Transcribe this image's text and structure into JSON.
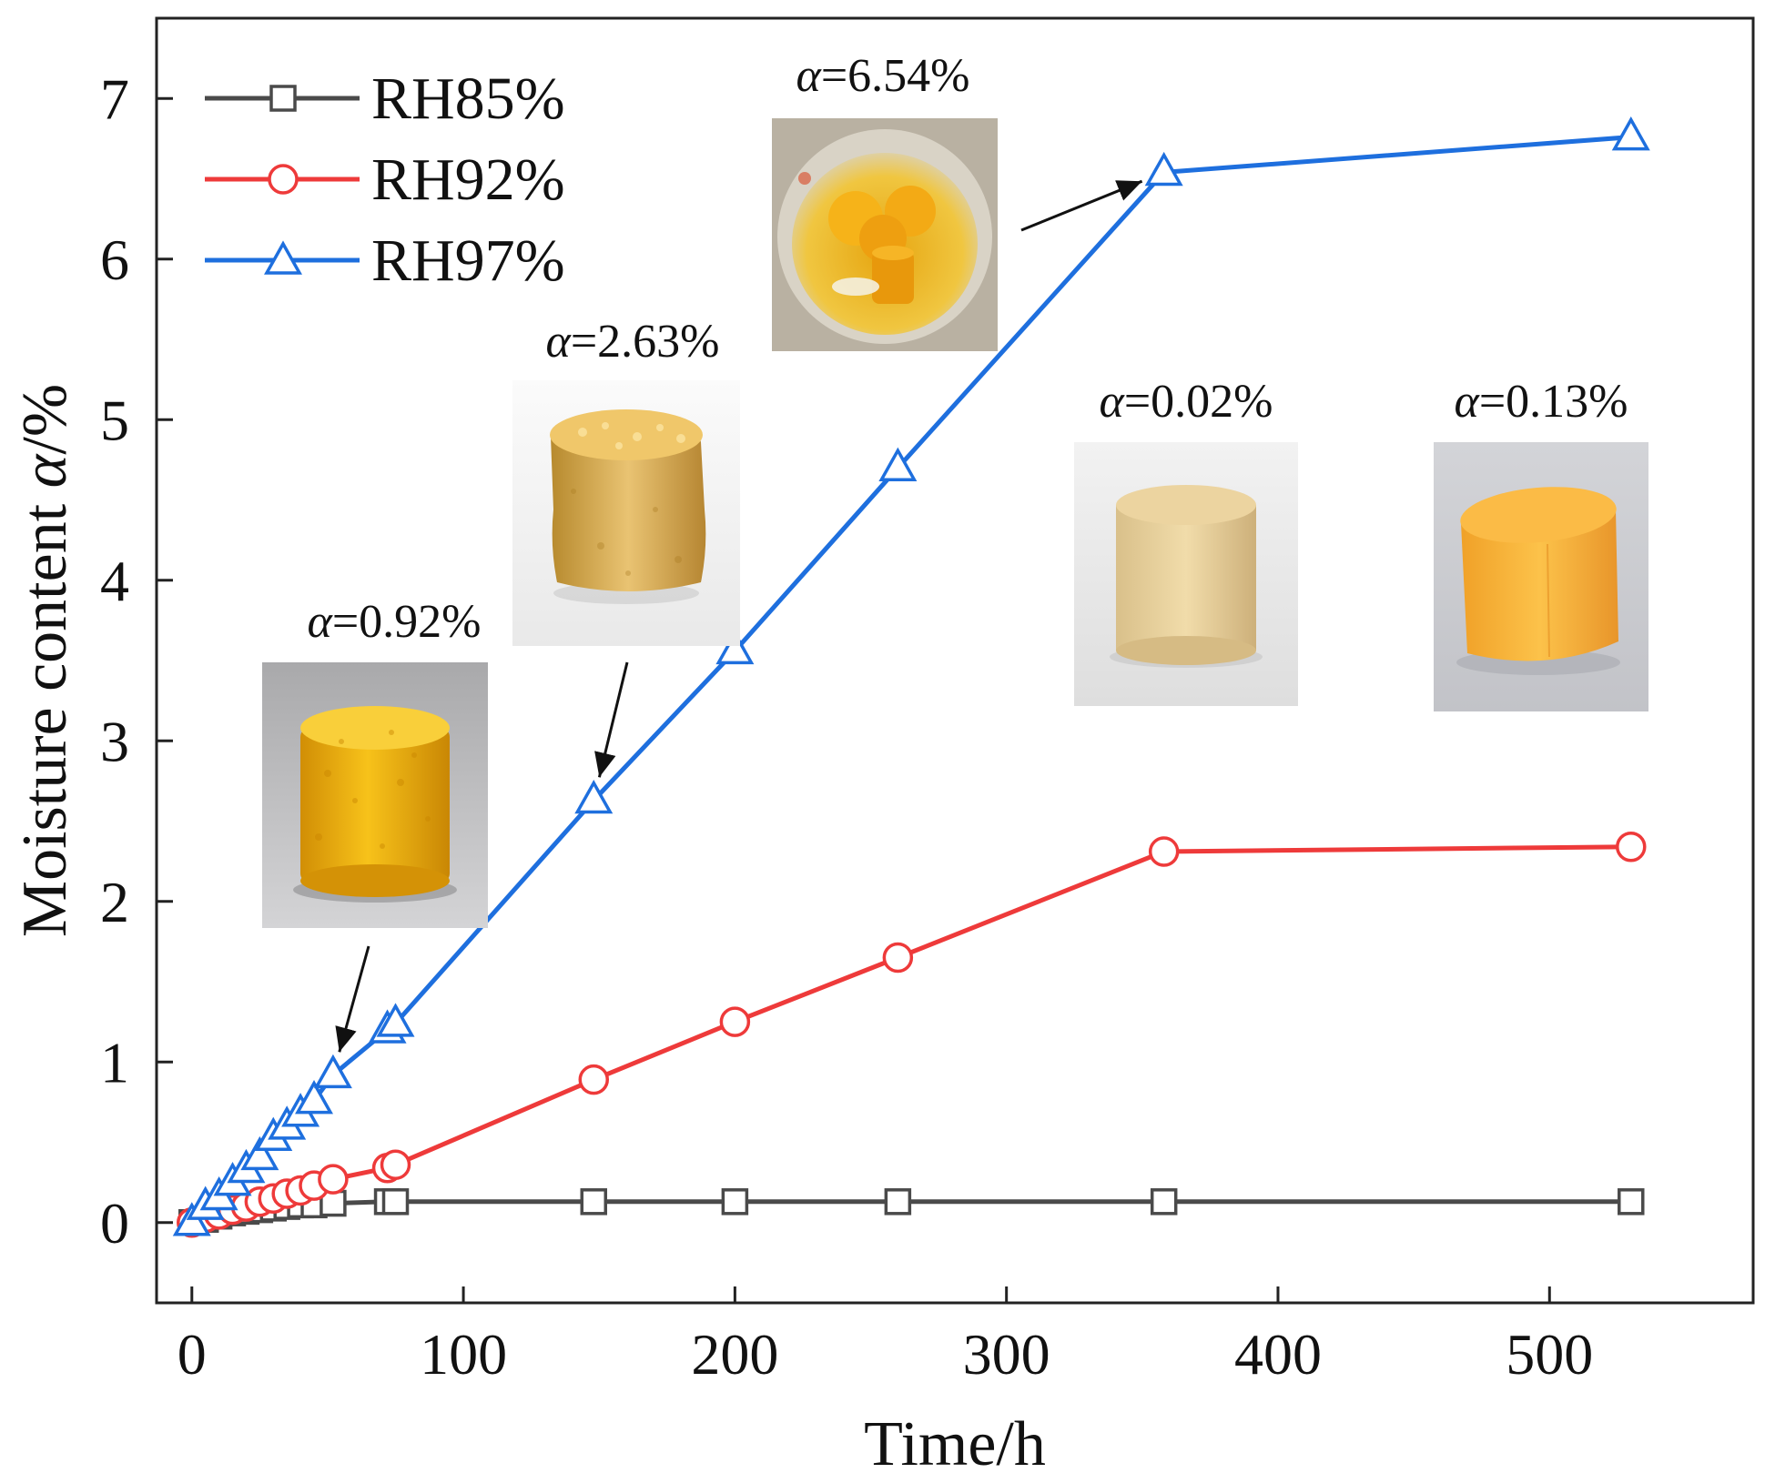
{
  "chart_data": {
    "type": "line",
    "title": "",
    "xlabel": "Time/h",
    "ylabel": "Moisture content α/%",
    "ylabel_parts": {
      "text": "Moisture content ",
      "symbol": "α",
      "unit": "/%"
    },
    "xlim": [
      -13,
      575
    ],
    "ylim": [
      -0.5,
      7.5
    ],
    "x_ticks": [
      0,
      100,
      200,
      300,
      400,
      500
    ],
    "y_ticks": [
      0,
      1,
      2,
      3,
      4,
      5,
      6,
      7
    ],
    "grid": false,
    "legend_position": "top-left",
    "series": [
      {
        "name": "RH85%",
        "color": "#4a4a4a",
        "marker": "square",
        "x": [
          0,
          5,
          10,
          15,
          20,
          25,
          30,
          35,
          40,
          45,
          52,
          72,
          75,
          148,
          200,
          260,
          358,
          530
        ],
        "y": [
          0,
          0.02,
          0.04,
          0.06,
          0.07,
          0.08,
          0.09,
          0.1,
          0.11,
          0.11,
          0.12,
          0.13,
          0.13,
          0.13,
          0.13,
          0.13,
          0.13,
          0.13
        ]
      },
      {
        "name": "RH92%",
        "color": "#ee3a3a",
        "marker": "circle",
        "x": [
          0,
          5,
          10,
          15,
          20,
          25,
          30,
          35,
          40,
          45,
          52,
          72,
          75,
          148,
          200,
          260,
          358,
          530
        ],
        "y": [
          0,
          0.03,
          0.05,
          0.08,
          0.1,
          0.13,
          0.15,
          0.18,
          0.2,
          0.23,
          0.27,
          0.34,
          0.36,
          0.89,
          1.25,
          1.65,
          2.31,
          2.34
        ]
      },
      {
        "name": "RH97%",
        "color": "#1e6fde",
        "marker": "triangle",
        "x": [
          0,
          5,
          10,
          15,
          20,
          25,
          30,
          35,
          40,
          45,
          52,
          72,
          75,
          148,
          200,
          260,
          358,
          530
        ],
        "y": [
          0,
          0.1,
          0.16,
          0.25,
          0.33,
          0.41,
          0.53,
          0.6,
          0.68,
          0.76,
          0.92,
          1.2,
          1.24,
          2.63,
          3.56,
          4.7,
          6.54,
          6.76
        ]
      }
    ],
    "annotations": [
      {
        "symbol": "α",
        "text": "=0.92%",
        "photo": "sample-photo-rh97-52h",
        "arrow_to": {
          "x": 52,
          "y": 0.92
        }
      },
      {
        "symbol": "α",
        "text": "=2.63%",
        "photo": "sample-photo-rh97-148h",
        "arrow_to": {
          "x": 148,
          "y": 2.63
        }
      },
      {
        "symbol": "α",
        "text": "=6.54%",
        "photo": "sample-photo-rh97-358h",
        "arrow_to": {
          "x": 358,
          "y": 6.54
        }
      },
      {
        "symbol": "α",
        "text": "=0.02%",
        "photo": "sample-photo-rh85-initial",
        "arrow_to": null
      },
      {
        "symbol": "α",
        "text": "=0.13%",
        "photo": "sample-photo-rh85-final",
        "arrow_to": null
      }
    ]
  }
}
